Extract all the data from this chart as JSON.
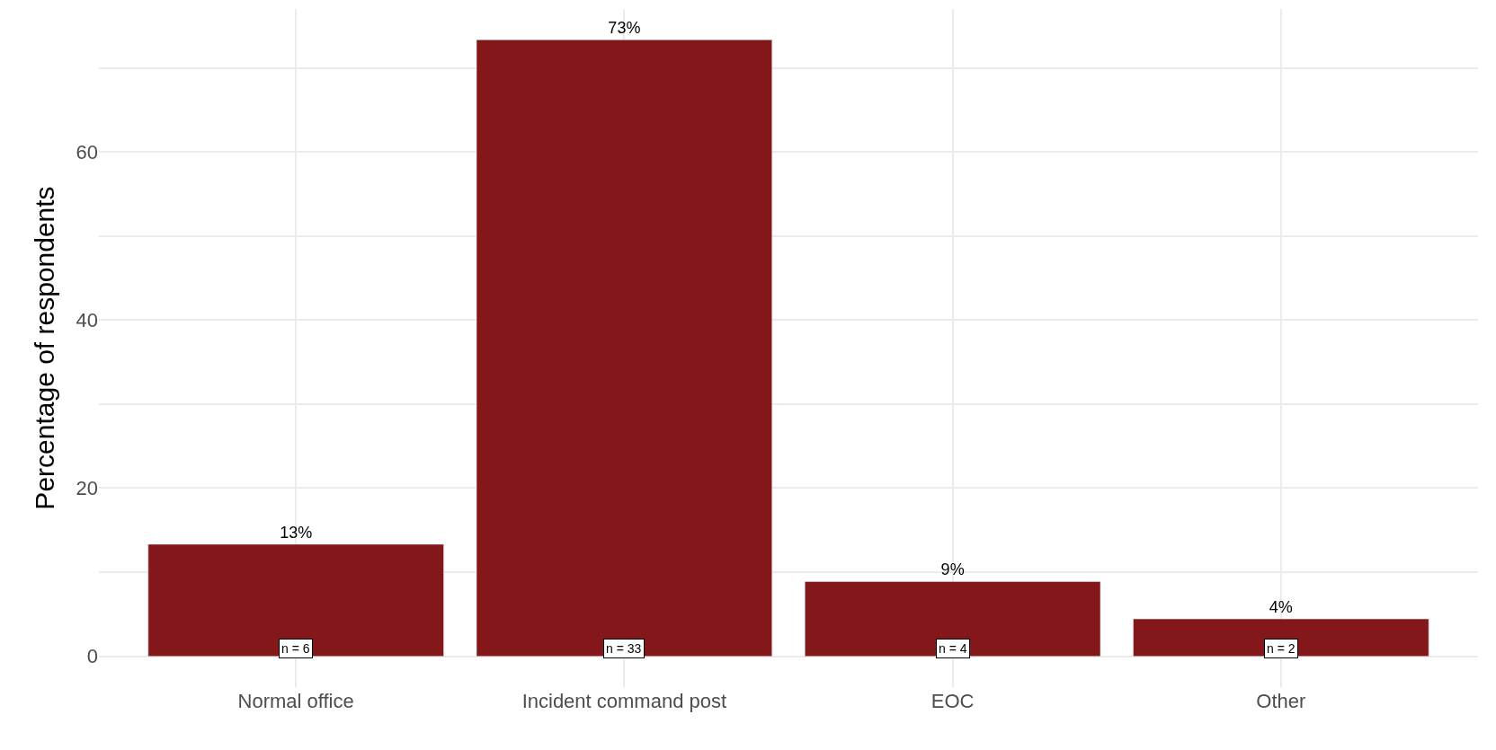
{
  "chart_data": {
    "type": "bar",
    "ylabel": "Percentage of respondents",
    "categories": [
      "Normal office",
      "Incident command post",
      "EOC",
      "Other"
    ],
    "values": [
      13.33,
      73.33,
      8.89,
      4.44
    ],
    "value_labels": [
      "13%",
      "73%",
      "9%",
      "4%"
    ],
    "color": "#84171a",
    "ylim": [
      -3.67,
      77.0
    ],
    "yticks": [
      0,
      {
        "value": 10,
        "label": null
      },
      20,
      {
        "value": 30,
        "label": null
      },
      40,
      {
        "value": 50,
        "label": null
      },
      60,
      {
        "value": 70,
        "label": null
      }
    ],
    "grid": true,
    "annotations": [
      {
        "text": "n = 6",
        "x": "Normal office",
        "y": 0
      },
      {
        "text": "n = 33",
        "x": "Incident command post",
        "y": 0
      },
      {
        "text": "n = 4",
        "x": "EOC",
        "y": 0
      },
      {
        "text": "n = 2",
        "x": "Other",
        "y": 0
      }
    ]
  }
}
